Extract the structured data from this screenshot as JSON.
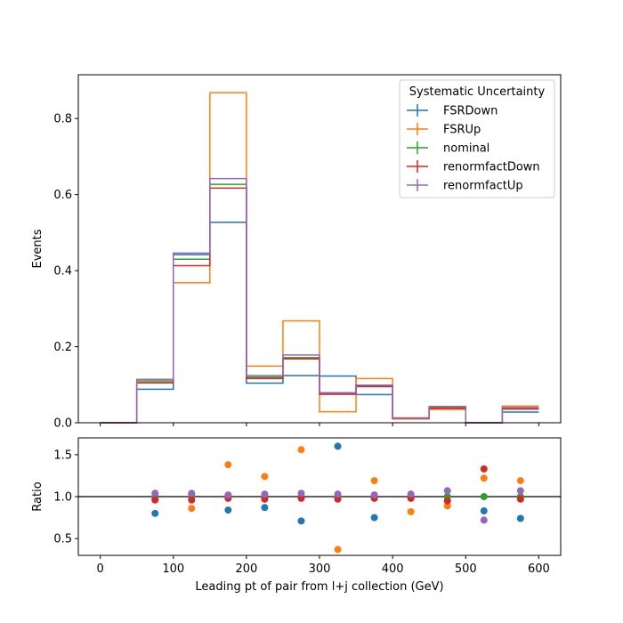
{
  "chart_data": {
    "type": "line",
    "bin_edges": [
      0,
      50,
      100,
      150,
      200,
      250,
      300,
      350,
      400,
      450,
      500,
      550,
      600
    ],
    "x_ticks": [
      0,
      100,
      200,
      300,
      400,
      500,
      600
    ],
    "xlim": [
      -30,
      630
    ],
    "xlabel": "Leading pt of pair from l+j collection (GeV)",
    "top": {
      "ylabel": "Events",
      "ylim": [
        0,
        0.915
      ],
      "y_ticks": [
        0.0,
        0.2,
        0.4,
        0.6,
        0.8
      ],
      "y_tick_labels": [
        "0.0",
        "0.2",
        "0.4",
        "0.6",
        "0.8"
      ],
      "series": [
        {
          "name": "FSRDown",
          "color": "#1f77b4",
          "values": [
            0,
            0.088,
            0.442,
            0.527,
            0.104,
            0.124,
            0.123,
            0.074,
            0.012,
            0.038,
            0,
            0.028
          ]
        },
        {
          "name": "FSRUp",
          "color": "#ff7f0e",
          "values": [
            0,
            0.106,
            0.368,
            0.868,
            0.149,
            0.268,
            0.029,
            0.116,
            0.01,
            0.035,
            0,
            0.044
          ]
        },
        {
          "name": "nominal",
          "color": "#2ca02c",
          "values": [
            0,
            0.11,
            0.43,
            0.627,
            0.12,
            0.171,
            0.077,
            0.097,
            0.012,
            0.04,
            0,
            0.037
          ]
        },
        {
          "name": "renormfactDown",
          "color": "#d62728",
          "values": [
            0,
            0.105,
            0.413,
            0.617,
            0.116,
            0.168,
            0.075,
            0.095,
            0.012,
            0.038,
            0,
            0.036
          ]
        },
        {
          "name": "renormfactUp",
          "color": "#9467bd",
          "values": [
            0,
            0.114,
            0.446,
            0.642,
            0.124,
            0.178,
            0.079,
            0.099,
            0.013,
            0.043,
            0,
            0.04
          ]
        }
      ]
    },
    "bottom": {
      "ylabel": "Ratio",
      "ylim": [
        0.3,
        1.7
      ],
      "y_ticks": [
        0.5,
        1.0,
        1.5
      ],
      "y_tick_labels": [
        "0.5",
        "1.0",
        "1.5"
      ],
      "reference_line": 1.0,
      "x": [
        75,
        125,
        175,
        225,
        275,
        325,
        375,
        425,
        475,
        525,
        575
      ],
      "series": [
        {
          "name": "FSRDown",
          "color": "#1f77b4",
          "values": [
            0.8,
            1.03,
            0.84,
            0.87,
            0.71,
            1.6,
            0.75,
            1.0,
            0.95,
            0.83,
            0.74
          ]
        },
        {
          "name": "FSRUp",
          "color": "#ff7f0e",
          "values": [
            0.97,
            0.86,
            1.38,
            1.24,
            1.56,
            0.37,
            1.19,
            0.82,
            0.89,
            1.22,
            1.19
          ]
        },
        {
          "name": "nominal",
          "color": "#2ca02c",
          "values": [
            1.0,
            1.0,
            1.0,
            1.0,
            1.0,
            1.0,
            1.0,
            1.0,
            1.0,
            1.0,
            1.0
          ]
        },
        {
          "name": "renormfactDown",
          "color": "#d62728",
          "values": [
            0.96,
            0.96,
            0.98,
            0.97,
            0.98,
            0.97,
            0.98,
            0.98,
            0.95,
            1.33,
            0.97
          ]
        },
        {
          "name": "renormfactUp",
          "color": "#9467bd",
          "values": [
            1.04,
            1.04,
            1.02,
            1.03,
            1.04,
            1.03,
            1.02,
            1.03,
            1.07,
            0.72,
            1.07
          ]
        }
      ]
    },
    "legend": {
      "title": "Systematic Uncertainty",
      "placement": "upper-right",
      "entries": [
        "FSRDown",
        "FSRUp",
        "nominal",
        "renormfactDown",
        "renormfactUp"
      ]
    }
  }
}
